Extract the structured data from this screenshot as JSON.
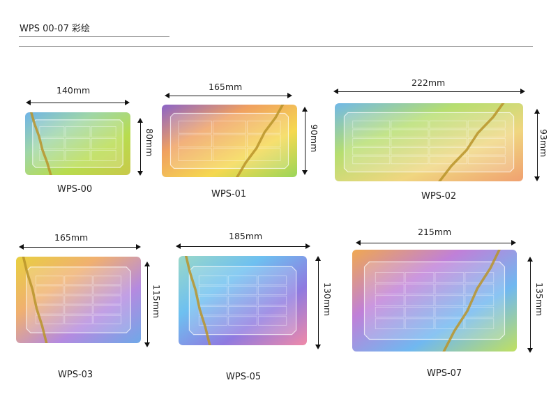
{
  "header": {
    "title": "WPS 00-07 彩绘"
  },
  "products": [
    {
      "model": "WPS-00",
      "width": "140mm",
      "height": "80mm",
      "colors": [
        "#6fb4e8",
        "#9fd6a6",
        "#b8dc4e",
        "#c9c94a"
      ]
    },
    {
      "model": "WPS-01",
      "width": "165mm",
      "height": "90mm",
      "colors": [
        "#8a63c9",
        "#f0a060",
        "#f5d850",
        "#9ad65a"
      ]
    },
    {
      "model": "WPS-02",
      "width": "222mm",
      "height": "93mm",
      "colors": [
        "#70b8e8",
        "#b6de70",
        "#f0d680",
        "#f0a070"
      ]
    },
    {
      "model": "WPS-03",
      "width": "165mm",
      "height": "115mm",
      "colors": [
        "#e8d040",
        "#f0b070",
        "#b48ae0",
        "#6fa8e8"
      ]
    },
    {
      "model": "WPS-05",
      "width": "185mm",
      "height": "130mm",
      "colors": [
        "#9ad8c8",
        "#6ec0f0",
        "#8f7ae0",
        "#f08aa8"
      ]
    },
    {
      "model": "WPS-07",
      "width": "215mm",
      "height": "135mm",
      "colors": [
        "#f0a850",
        "#c080d8",
        "#70b8f0",
        "#c0e060"
      ]
    }
  ],
  "accent_gold": "#b8942a"
}
